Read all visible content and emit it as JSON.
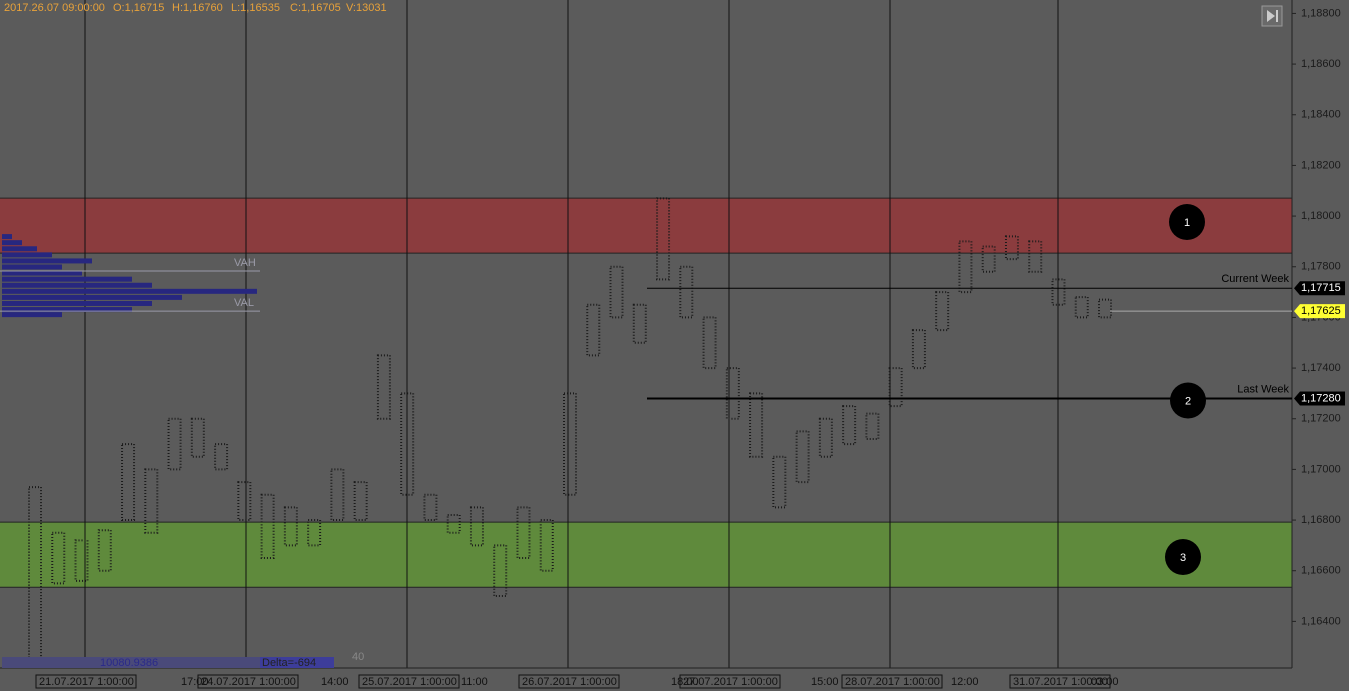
{
  "chart_data": {
    "type": "range",
    "header": [
      "2017.26.07 09:00:00",
      "O:1,16715",
      "H:1,16760",
      "L:1,16535",
      "C:1,16705",
      "V:13031"
    ],
    "ylim": [
      1.16216,
      1.18853
    ],
    "yticks": [
      {
        "value": 1.164,
        "label": "1,16400"
      },
      {
        "value": 1.166,
        "label": "1,16600"
      },
      {
        "value": 1.168,
        "label": "1,16800"
      },
      {
        "value": 1.17,
        "label": "1,17000"
      },
      {
        "value": 1.172,
        "label": "1,17200"
      },
      {
        "value": 1.174,
        "label": "1,17400"
      },
      {
        "value": 1.176,
        "label": "1,17600"
      },
      {
        "value": 1.178,
        "label": "1,17800"
      },
      {
        "value": 1.18,
        "label": "1,18000"
      },
      {
        "value": 1.182,
        "label": "1,18200"
      },
      {
        "value": 1.184,
        "label": "1,18400"
      },
      {
        "value": 1.186,
        "label": "1,18600"
      },
      {
        "value": 1.188,
        "label": "1,18800"
      }
    ],
    "color": "#1a1a1a",
    "highs": [
      1.1693,
      1.1675,
      1.1672,
      1.1676,
      1.171,
      1.17,
      1.172,
      1.172,
      1.171,
      1.1695,
      1.169,
      1.1685,
      1.168,
      1.17,
      1.1695,
      1.1745,
      1.173,
      1.169,
      1.1682,
      1.1685,
      1.167,
      1.1685,
      1.168,
      1.173,
      1.1765,
      1.178,
      1.1765,
      1.1807,
      1.178,
      1.176,
      1.174,
      1.173,
      1.1705,
      1.1715,
      1.172,
      1.1725,
      1.1722,
      1.174,
      1.1755,
      1.177,
      1.179,
      1.1788,
      1.1792,
      1.179,
      1.1775,
      1.1768,
      1.1767
    ],
    "lows": [
      1.1625,
      1.1655,
      1.1656,
      1.166,
      1.168,
      1.1675,
      1.17,
      1.1705,
      1.17,
      1.168,
      1.1665,
      1.167,
      1.167,
      1.168,
      1.168,
      1.172,
      1.169,
      1.168,
      1.1675,
      1.167,
      1.165,
      1.1665,
      1.166,
      1.169,
      1.1745,
      1.176,
      1.175,
      1.1775,
      1.176,
      1.174,
      1.172,
      1.1705,
      1.1685,
      1.1695,
      1.1705,
      1.171,
      1.1712,
      1.1725,
      1.174,
      1.1755,
      1.177,
      1.1778,
      1.1783,
      1.1778,
      1.1765,
      1.176,
      1.176
    ],
    "zones": [
      {
        "label": "1",
        "from": 1.17854,
        "to": 1.18071,
        "color": "#8b3c3e"
      },
      {
        "label": "3",
        "from": 1.16535,
        "to": 1.16792,
        "color": "#5f8a3c"
      }
    ],
    "levels": [
      {
        "name": "Current Week",
        "value": 1.17715,
        "value_label": "1,17715"
      },
      {
        "name": "Last Week",
        "value": 1.1728,
        "value_label": "1,17280",
        "marker": "2"
      }
    ],
    "last_price": {
      "value": 1.17625,
      "label": "1,17625",
      "color": "#ffff33"
    },
    "profile": {
      "color": "#27277f",
      "prices": [
        1.17917,
        1.17893,
        1.17869,
        1.17845,
        1.17821,
        1.17797,
        1.17773,
        1.17749,
        1.17725,
        1.17701,
        1.17677,
        1.17653,
        1.17629,
        1.17609
      ],
      "volumes": [
        10,
        20,
        35,
        50,
        90,
        60,
        80,
        130,
        150,
        255,
        180,
        150,
        130,
        60
      ],
      "vah": {
        "label": "VAH",
        "value": 1.17783
      },
      "val": {
        "label": "VAL",
        "value": 1.17625
      }
    },
    "x_labels": [
      "21.07.2017 1:00:00",
      "17:00",
      "24.07.2017 1:00:00",
      "14:00",
      "25.07.2017 1:00:00",
      "11:00",
      "26.07.2017 1:00:00",
      "18:00",
      "27.07.2017 1:00:00",
      "15:00",
      "28.07.2017 1:00:00",
      "12:00",
      "31.07.2017 1:00:00",
      "03:00"
    ],
    "footer": {
      "volume": "10080.9386",
      "delta": "Delta=-694",
      "count": "40"
    }
  }
}
